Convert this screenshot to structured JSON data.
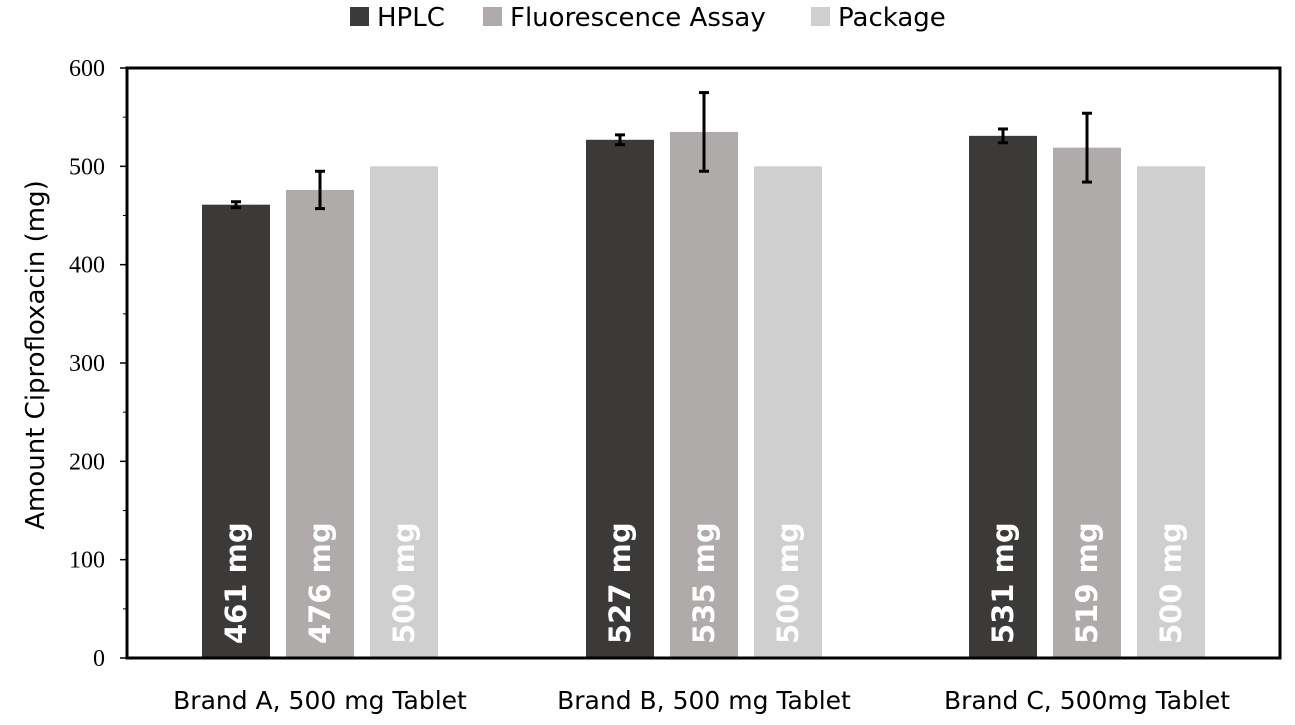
{
  "chart_data": {
    "type": "bar",
    "title": "",
    "xlabel": "",
    "ylabel": "Amount Ciprofloxacin (mg)",
    "ylim": [
      0,
      600
    ],
    "yticks": [
      0,
      100,
      200,
      300,
      400,
      500,
      600
    ],
    "grid": false,
    "legend_position": "top",
    "categories": [
      "Brand A, 500 mg Tablet",
      "Brand B, 500 mg Tablet",
      "Brand C, 500mg Tablet"
    ],
    "series": [
      {
        "name": "HPLC",
        "color": "#3c3a39",
        "values": [
          461,
          527,
          531
        ],
        "errors": [
          3,
          5,
          7
        ],
        "labels": [
          "461 mg",
          "527 mg",
          "531 mg"
        ],
        "label_color": "#ffffff"
      },
      {
        "name": "Fluorescence Assay",
        "color": "#aeabaa",
        "values": [
          476,
          535,
          519
        ],
        "errors": [
          19,
          40,
          35
        ],
        "labels": [
          "476 mg",
          "535 mg",
          "519 mg"
        ],
        "label_color": "#ffffff"
      },
      {
        "name": "Package",
        "color": "#d0cfcf",
        "values": [
          500,
          500,
          500
        ],
        "errors": [
          null,
          null,
          null
        ],
        "labels": [
          "500 mg",
          "500 mg",
          "500 mg"
        ],
        "label_color": "#ffffff"
      }
    ]
  }
}
